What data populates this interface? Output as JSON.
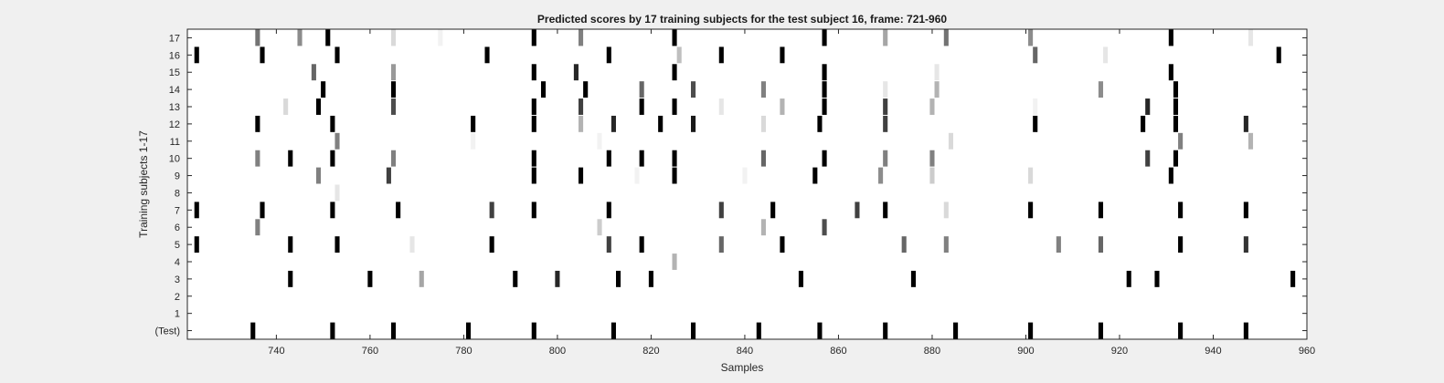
{
  "chart_data": {
    "type": "heatmap",
    "title": "Predicted scores by 17 training subjects for the test subject 16, frame: 721-960",
    "xlabel": "Samples",
    "ylabel": "Training subjects 1-17",
    "xlim": [
      721,
      960
    ],
    "x_ticks": [
      740,
      760,
      780,
      800,
      820,
      840,
      860,
      880,
      900,
      920,
      940,
      960
    ],
    "y_tick_labels": [
      "(Test)",
      "1",
      "2",
      "3",
      "4",
      "5",
      "6",
      "7",
      "8",
      "9",
      "10",
      "11",
      "12",
      "13",
      "14",
      "15",
      "16",
      "17"
    ],
    "grid": false,
    "colormap": "gray (white = 0, black = 1)",
    "rows": [
      {
        "label": "(Test)",
        "cells": [
          [
            735,
            1
          ],
          [
            752,
            1
          ],
          [
            765,
            1
          ],
          [
            781,
            1
          ],
          [
            795,
            1
          ],
          [
            812,
            1
          ],
          [
            829,
            1
          ],
          [
            843,
            1
          ],
          [
            856,
            1
          ],
          [
            870,
            1
          ],
          [
            885,
            1
          ],
          [
            901,
            1
          ],
          [
            916,
            1
          ],
          [
            933,
            1
          ],
          [
            947,
            1
          ]
        ]
      },
      {
        "label": "1",
        "cells": []
      },
      {
        "label": "2",
        "cells": []
      },
      {
        "label": "3",
        "cells": [
          [
            743,
            1
          ],
          [
            760,
            1
          ],
          [
            771,
            0.35
          ],
          [
            791,
            1
          ],
          [
            800,
            0.85
          ],
          [
            813,
            1
          ],
          [
            820,
            1
          ],
          [
            852,
            1
          ],
          [
            876,
            1
          ],
          [
            922,
            1
          ],
          [
            928,
            1
          ],
          [
            957,
            1
          ]
        ]
      },
      {
        "label": "4",
        "cells": [
          [
            825,
            0.3
          ]
        ]
      },
      {
        "label": "5",
        "cells": [
          [
            723,
            1
          ],
          [
            743,
            1
          ],
          [
            753,
            1
          ],
          [
            769,
            0.1
          ],
          [
            786,
            1
          ],
          [
            811,
            0.75
          ],
          [
            818,
            1
          ],
          [
            835,
            0.6
          ],
          [
            848,
            1
          ],
          [
            874,
            0.6
          ],
          [
            883,
            0.5
          ],
          [
            907,
            0.5
          ],
          [
            916,
            0.6
          ],
          [
            933,
            1
          ],
          [
            947,
            0.8
          ]
        ]
      },
      {
        "label": "6",
        "cells": [
          [
            736,
            0.5
          ],
          [
            809,
            0.2
          ],
          [
            844,
            0.3
          ],
          [
            857,
            0.7
          ]
        ]
      },
      {
        "label": "7",
        "cells": [
          [
            723,
            1
          ],
          [
            737,
            1
          ],
          [
            752,
            1
          ],
          [
            766,
            1
          ],
          [
            786,
            0.75
          ],
          [
            795,
            1
          ],
          [
            811,
            1
          ],
          [
            835,
            0.75
          ],
          [
            846,
            1
          ],
          [
            864,
            0.75
          ],
          [
            870,
            1
          ],
          [
            883,
            0.15
          ],
          [
            901,
            1
          ],
          [
            916,
            1
          ],
          [
            933,
            1
          ],
          [
            947,
            1
          ]
        ]
      },
      {
        "label": "8",
        "cells": [
          [
            753,
            0.1
          ]
        ]
      },
      {
        "label": "9",
        "cells": [
          [
            749,
            0.5
          ],
          [
            764,
            0.75
          ],
          [
            795,
            1
          ],
          [
            805,
            1
          ],
          [
            817,
            0.05
          ],
          [
            825,
            1
          ],
          [
            840,
            0.05
          ],
          [
            855,
            1
          ],
          [
            869,
            0.45
          ],
          [
            880,
            0.2
          ],
          [
            901,
            0.15
          ],
          [
            931,
            1
          ]
        ]
      },
      {
        "label": "10",
        "cells": [
          [
            736,
            0.5
          ],
          [
            743,
            1
          ],
          [
            752,
            1
          ],
          [
            765,
            0.5
          ],
          [
            795,
            1
          ],
          [
            811,
            1
          ],
          [
            818,
            1
          ],
          [
            825,
            1
          ],
          [
            844,
            0.6
          ],
          [
            857,
            1
          ],
          [
            870,
            0.5
          ],
          [
            880,
            0.5
          ],
          [
            926,
            0.75
          ],
          [
            932,
            1
          ]
        ]
      },
      {
        "label": "11",
        "cells": [
          [
            753,
            0.5
          ],
          [
            782,
            0.05
          ],
          [
            809,
            0.05
          ],
          [
            884,
            0.15
          ],
          [
            933,
            0.5
          ],
          [
            948,
            0.3
          ]
        ]
      },
      {
        "label": "12",
        "cells": [
          [
            736,
            1
          ],
          [
            752,
            1
          ],
          [
            782,
            1
          ],
          [
            795,
            1
          ],
          [
            805,
            0.3
          ],
          [
            812,
            0.85
          ],
          [
            822,
            1
          ],
          [
            829,
            0.9
          ],
          [
            844,
            0.15
          ],
          [
            856,
            1
          ],
          [
            870,
            0.75
          ],
          [
            902,
            1
          ],
          [
            925,
            1
          ],
          [
            932,
            1
          ],
          [
            947,
            0.85
          ]
        ]
      },
      {
        "label": "13",
        "cells": [
          [
            742,
            0.15
          ],
          [
            749,
            1
          ],
          [
            765,
            0.7
          ],
          [
            795,
            1
          ],
          [
            805,
            0.75
          ],
          [
            818,
            1
          ],
          [
            825,
            1
          ],
          [
            835,
            0.1
          ],
          [
            848,
            0.3
          ],
          [
            857,
            1
          ],
          [
            870,
            0.75
          ],
          [
            880,
            0.3
          ],
          [
            902,
            0.05
          ],
          [
            926,
            0.85
          ],
          [
            932,
            1
          ]
        ]
      },
      {
        "label": "14",
        "cells": [
          [
            750,
            1
          ],
          [
            765,
            1
          ],
          [
            797,
            1
          ],
          [
            806,
            1
          ],
          [
            818,
            0.6
          ],
          [
            829,
            0.7
          ],
          [
            844,
            0.5
          ],
          [
            857,
            1
          ],
          [
            870,
            0.1
          ],
          [
            881,
            0.3
          ],
          [
            916,
            0.45
          ],
          [
            932,
            1
          ]
        ]
      },
      {
        "label": "15",
        "cells": [
          [
            748,
            0.6
          ],
          [
            765,
            0.4
          ],
          [
            795,
            1
          ],
          [
            804,
            0.85
          ],
          [
            825,
            1
          ],
          [
            857,
            1
          ],
          [
            881,
            0.1
          ],
          [
            931,
            1
          ]
        ]
      },
      {
        "label": "16",
        "cells": [
          [
            723,
            1
          ],
          [
            737,
            1
          ],
          [
            753,
            1
          ],
          [
            785,
            1
          ],
          [
            811,
            1
          ],
          [
            826,
            0.25
          ],
          [
            835,
            1
          ],
          [
            848,
            1
          ],
          [
            902,
            0.6
          ],
          [
            917,
            0.1
          ],
          [
            954,
            1
          ]
        ]
      },
      {
        "label": "17",
        "cells": [
          [
            736,
            0.55
          ],
          [
            745,
            0.45
          ],
          [
            751,
            1
          ],
          [
            765,
            0.15
          ],
          [
            775,
            0.05
          ],
          [
            795,
            1
          ],
          [
            805,
            0.5
          ],
          [
            825,
            1
          ],
          [
            857,
            1
          ],
          [
            870,
            0.35
          ],
          [
            883,
            0.55
          ],
          [
            901,
            0.45
          ],
          [
            931,
            1
          ],
          [
            948,
            0.1
          ]
        ]
      }
    ]
  }
}
